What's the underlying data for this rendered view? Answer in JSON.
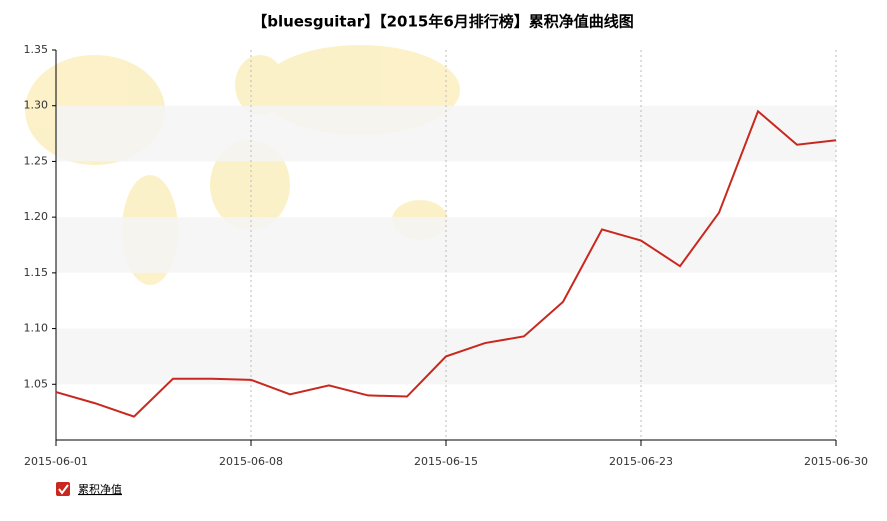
{
  "chart_data": {
    "type": "line",
    "title": "【bluesguitar】【2015年6月排行榜】累积净值曲线图",
    "categories": [
      "2015-06-01",
      null,
      null,
      null,
      null,
      "2015-06-08",
      null,
      null,
      null,
      null,
      "2015-06-15",
      null,
      null,
      null,
      null,
      "2015-06-23",
      null,
      null,
      null,
      null,
      "2015-06-30"
    ],
    "series": [
      {
        "name": "累积净值",
        "color": "#c8281e",
        "values": [
          1.043,
          1.033,
          1.021,
          1.055,
          1.055,
          1.054,
          1.041,
          1.049,
          1.04,
          1.039,
          1.075,
          1.087,
          1.093,
          1.124,
          1.189,
          1.179,
          1.156,
          1.204,
          1.295,
          1.265,
          1.269
        ]
      }
    ],
    "ylim": [
      1.0,
      1.35
    ],
    "yticks": [
      1.05,
      {
        "value": 1.1,
        "label": "1.10"
      },
      1.15,
      {
        "value": 1.2,
        "label": "1.20"
      },
      1.25,
      {
        "value": 1.3,
        "label": "1.30"
      },
      1.35
    ],
    "grid": true
  }
}
